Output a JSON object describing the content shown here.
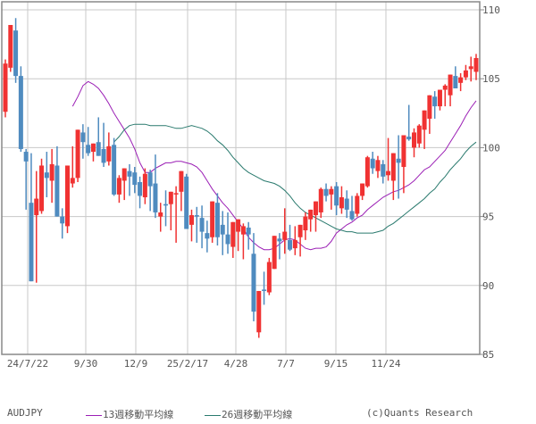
{
  "chart_data": {
    "type": "candlestick",
    "title": "AUDJPY",
    "xlabel": "",
    "ylabel": "",
    "ylim": [
      85,
      110
    ],
    "y_ticks": [
      85,
      90,
      95,
      100,
      105,
      110
    ],
    "x_ticks": [
      "24/7/22",
      "9/30",
      "12/9",
      "25/2/17",
      "4/28",
      "7/7",
      "9/15",
      "11/24"
    ],
    "grid": true,
    "legend_position": "bottom",
    "colors": {
      "up": "#f03232",
      "down": "#4f8bbf",
      "ma13": "#9b1fb5",
      "ma26": "#2a7a6e",
      "grid": "#c8c8c8",
      "axis": "#888888"
    },
    "candles": [
      {
        "o": 102.6,
        "h": 106.4,
        "l": 102.2,
        "c": 106.1
      },
      {
        "o": 105.8,
        "h": 107.8,
        "l": 105.5,
        "c": 108.9
      },
      {
        "o": 108.5,
        "h": 109.4,
        "l": 104.7,
        "c": 105.2
      },
      {
        "o": 105.2,
        "h": 105.9,
        "l": 99.7,
        "c": 99.9
      },
      {
        "o": 99.7,
        "h": 99.9,
        "l": 95.5,
        "c": 99.0
      },
      {
        "o": 96.0,
        "h": 99.6,
        "l": 95.8,
        "c": 90.3
      },
      {
        "o": 95.1,
        "h": 98.3,
        "l": 90.2,
        "c": 96.3
      },
      {
        "o": 95.4,
        "h": 99.2,
        "l": 95.2,
        "c": 98.7
      },
      {
        "o": 98.2,
        "h": 99.7,
        "l": 96.4,
        "c": 97.8
      },
      {
        "o": 97.6,
        "h": 99.9,
        "l": 96.0,
        "c": 98.8
      },
      {
        "o": 98.7,
        "h": 100.1,
        "l": 95.8,
        "c": 95.0
      },
      {
        "o": 95.0,
        "h": 95.6,
        "l": 93.4,
        "c": 94.5
      },
      {
        "o": 94.3,
        "h": 98.3,
        "l": 93.8,
        "c": 98.7
      },
      {
        "o": 97.4,
        "h": 100.1,
        "l": 97.1,
        "c": 97.8
      },
      {
        "o": 97.8,
        "h": 101.3,
        "l": 97.5,
        "c": 101.3
      },
      {
        "o": 101.1,
        "h": 101.7,
        "l": 99.2,
        "c": 100.4
      },
      {
        "o": 100.2,
        "h": 101.5,
        "l": 99.4,
        "c": 99.6
      },
      {
        "o": 99.7,
        "h": 100.3,
        "l": 99.0,
        "c": 100.3
      },
      {
        "o": 100.4,
        "h": 102.2,
        "l": 99.5,
        "c": 99.4
      },
      {
        "o": 99.9,
        "h": 101.8,
        "l": 98.6,
        "c": 98.9
      },
      {
        "o": 99.0,
        "h": 101.1,
        "l": 98.7,
        "c": 100.1
      },
      {
        "o": 100.2,
        "h": 100.7,
        "l": 96.5,
        "c": 96.6
      },
      {
        "o": 96.6,
        "h": 98.0,
        "l": 96.0,
        "c": 97.8
      },
      {
        "o": 97.6,
        "h": 98.4,
        "l": 96.2,
        "c": 98.5
      },
      {
        "o": 98.3,
        "h": 98.8,
        "l": 96.5,
        "c": 97.9
      },
      {
        "o": 98.2,
        "h": 98.6,
        "l": 96.7,
        "c": 97.3
      },
      {
        "o": 97.5,
        "h": 97.9,
        "l": 95.6,
        "c": 96.5
      },
      {
        "o": 96.4,
        "h": 98.5,
        "l": 95.9,
        "c": 98.1
      },
      {
        "o": 98.2,
        "h": 98.4,
        "l": 95.4,
        "c": 97.2
      },
      {
        "o": 97.4,
        "h": 99.5,
        "l": 94.9,
        "c": 95.3
      },
      {
        "o": 95.0,
        "h": 96.0,
        "l": 93.9,
        "c": 95.3
      },
      {
        "o": 95.9,
        "h": 96.9,
        "l": 94.3,
        "c": 95.8
      },
      {
        "o": 95.9,
        "h": 96.2,
        "l": 94.0,
        "c": 96.8
      },
      {
        "o": 96.6,
        "h": 97.2,
        "l": 93.1,
        "c": 96.7
      },
      {
        "o": 96.8,
        "h": 97.4,
        "l": 95.4,
        "c": 98.3
      },
      {
        "o": 97.9,
        "h": 98.1,
        "l": 94.3,
        "c": 94.1
      },
      {
        "o": 94.4,
        "h": 95.5,
        "l": 93.2,
        "c": 95.1
      },
      {
        "o": 95.1,
        "h": 95.7,
        "l": 93.1,
        "c": 95.0
      },
      {
        "o": 94.9,
        "h": 95.8,
        "l": 92.7,
        "c": 93.9
      },
      {
        "o": 93.8,
        "h": 94.7,
        "l": 92.4,
        "c": 93.4
      },
      {
        "o": 93.5,
        "h": 96.1,
        "l": 93.1,
        "c": 96.1
      },
      {
        "o": 96.0,
        "h": 96.7,
        "l": 92.9,
        "c": 93.5
      },
      {
        "o": 94.4,
        "h": 95.4,
        "l": 92.2,
        "c": 93.7
      },
      {
        "o": 93.7,
        "h": 95.3,
        "l": 92.3,
        "c": 93.0
      },
      {
        "o": 92.8,
        "h": 94.3,
        "l": 92.0,
        "c": 94.6
      },
      {
        "o": 93.9,
        "h": 94.6,
        "l": 92.5,
        "c": 94.8
      },
      {
        "o": 93.7,
        "h": 94.5,
        "l": 91.9,
        "c": 94.3
      },
      {
        "o": 94.2,
        "h": 94.6,
        "l": 92.6,
        "c": 93.7
      },
      {
        "o": 92.3,
        "h": 93.8,
        "l": 87.4,
        "c": 88.1
      },
      {
        "o": 86.6,
        "h": 89.0,
        "l": 86.2,
        "c": 89.6
      },
      {
        "o": 89.7,
        "h": 91.0,
        "l": 88.6,
        "c": 89.6
      },
      {
        "o": 89.5,
        "h": 92.0,
        "l": 89.3,
        "c": 91.7
      },
      {
        "o": 91.2,
        "h": 93.5,
        "l": 91.2,
        "c": 93.6
      },
      {
        "o": 93.4,
        "h": 93.8,
        "l": 91.9,
        "c": 93.2
      },
      {
        "o": 93.3,
        "h": 95.6,
        "l": 92.3,
        "c": 93.9
      },
      {
        "o": 93.3,
        "h": 94.4,
        "l": 92.5,
        "c": 92.6
      },
      {
        "o": 92.7,
        "h": 94.3,
        "l": 92.2,
        "c": 93.3
      },
      {
        "o": 93.5,
        "h": 94.4,
        "l": 92.1,
        "c": 94.4
      },
      {
        "o": 94.0,
        "h": 95.3,
        "l": 93.3,
        "c": 95.0
      },
      {
        "o": 94.8,
        "h": 95.3,
        "l": 93.9,
        "c": 95.5
      },
      {
        "o": 95.1,
        "h": 96.0,
        "l": 93.9,
        "c": 96.1
      },
      {
        "o": 95.3,
        "h": 97.1,
        "l": 94.9,
        "c": 97.0
      },
      {
        "o": 97.0,
        "h": 97.4,
        "l": 96.1,
        "c": 96.5
      },
      {
        "o": 96.6,
        "h": 97.2,
        "l": 95.5,
        "c": 97.0
      },
      {
        "o": 97.2,
        "h": 97.5,
        "l": 95.1,
        "c": 95.8
      },
      {
        "o": 95.6,
        "h": 97.2,
        "l": 95.2,
        "c": 96.4
      },
      {
        "o": 96.3,
        "h": 96.9,
        "l": 94.9,
        "c": 95.5
      },
      {
        "o": 95.4,
        "h": 96.5,
        "l": 94.7,
        "c": 94.8
      },
      {
        "o": 95.2,
        "h": 96.7,
        "l": 95.0,
        "c": 96.5
      },
      {
        "o": 96.5,
        "h": 97.4,
        "l": 96.2,
        "c": 97.4
      },
      {
        "o": 97.2,
        "h": 99.4,
        "l": 97.1,
        "c": 99.3
      },
      {
        "o": 99.2,
        "h": 99.7,
        "l": 98.1,
        "c": 98.5
      },
      {
        "o": 98.3,
        "h": 99.4,
        "l": 97.8,
        "c": 99.1
      },
      {
        "o": 98.8,
        "h": 99.1,
        "l": 97.4,
        "c": 97.9
      },
      {
        "o": 98.0,
        "h": 100.7,
        "l": 97.6,
        "c": 98.3
      },
      {
        "o": 97.6,
        "h": 99.1,
        "l": 96.2,
        "c": 99.6
      },
      {
        "o": 99.2,
        "h": 100.9,
        "l": 96.3,
        "c": 98.9
      },
      {
        "o": 98.6,
        "h": 98.8,
        "l": 96.7,
        "c": 100.9
      },
      {
        "o": 100.8,
        "h": 103.1,
        "l": 100.5,
        "c": 100.6
      },
      {
        "o": 100.0,
        "h": 101.4,
        "l": 99.3,
        "c": 101.1
      },
      {
        "o": 100.3,
        "h": 101.7,
        "l": 100.0,
        "c": 101.6
      },
      {
        "o": 101.3,
        "h": 102.0,
        "l": 99.9,
        "c": 102.7
      },
      {
        "o": 102.1,
        "h": 103.5,
        "l": 101.0,
        "c": 103.8
      },
      {
        "o": 103.7,
        "h": 104.1,
        "l": 102.1,
        "c": 103.0
      },
      {
        "o": 103.0,
        "h": 104.2,
        "l": 102.7,
        "c": 104.2
      },
      {
        "o": 104.2,
        "h": 104.6,
        "l": 103.0,
        "c": 104.5
      },
      {
        "o": 103.8,
        "h": 105.0,
        "l": 103.0,
        "c": 105.3
      },
      {
        "o": 105.2,
        "h": 105.9,
        "l": 104.3,
        "c": 104.3
      },
      {
        "o": 104.7,
        "h": 105.4,
        "l": 104.1,
        "c": 105.1
      },
      {
        "o": 105.1,
        "h": 106.0,
        "l": 104.9,
        "c": 105.6
      },
      {
        "o": 105.7,
        "h": 106.6,
        "l": 104.8,
        "c": 105.9
      },
      {
        "o": 105.5,
        "h": 106.8,
        "l": 104.9,
        "c": 106.5
      }
    ],
    "series": [
      {
        "name": "13週移動平均線",
        "color": "#9b1fb5",
        "values": [
          103.0,
          103.7,
          104.5,
          104.8,
          104.6,
          104.3,
          103.8,
          103.2,
          102.5,
          101.9,
          101.3,
          100.7,
          99.9,
          98.9,
          98.2,
          98.2,
          98.5,
          98.7,
          98.9,
          98.9,
          99.0,
          99.0,
          98.9,
          98.8,
          98.6,
          98.2,
          97.6,
          97.0,
          96.5,
          96.0,
          95.6,
          95.1,
          94.6,
          94.1,
          93.5,
          93.1,
          92.8,
          92.6,
          92.6,
          92.7,
          93.0,
          93.3,
          93.4,
          93.3,
          93.0,
          92.7,
          92.6,
          92.7,
          92.7,
          92.8,
          93.2,
          93.8,
          94.1,
          94.4,
          94.6,
          94.9,
          95.1,
          95.5,
          95.8,
          96.1,
          96.4,
          96.6,
          96.8,
          96.9,
          97.1,
          97.3,
          97.6,
          98.0,
          98.4,
          98.6,
          99.0,
          99.4,
          99.8,
          100.4,
          101.0,
          101.6,
          102.3,
          102.9,
          103.4
        ]
      },
      {
        "name": "26週移動平均線",
        "color": "#2a7a6e",
        "values": [
          100.4,
          100.8,
          101.3,
          101.6,
          101.7,
          101.7,
          101.7,
          101.6,
          101.6,
          101.6,
          101.6,
          101.5,
          101.4,
          101.4,
          101.5,
          101.6,
          101.5,
          101.4,
          101.2,
          100.9,
          100.5,
          100.2,
          99.8,
          99.3,
          98.9,
          98.5,
          98.2,
          98.0,
          97.8,
          97.6,
          97.5,
          97.4,
          97.2,
          96.9,
          96.5,
          96.0,
          95.6,
          95.3,
          95.1,
          94.9,
          94.7,
          94.5,
          94.3,
          94.1,
          94.0,
          93.9,
          93.9,
          93.8,
          93.8,
          93.8,
          93.8,
          93.9,
          94.0,
          94.3,
          94.5,
          94.8,
          95.1,
          95.4,
          95.7,
          96.0,
          96.3,
          96.7,
          97.0,
          97.5,
          97.9,
          98.4,
          98.8,
          99.2,
          99.7,
          100.1,
          100.4
        ]
      }
    ]
  },
  "legend": {
    "symbol": "AUDJPY",
    "ma13_label": "13週移動平均線",
    "ma26_label": "26週移動平均線",
    "credit": "(c)Quants Research"
  }
}
